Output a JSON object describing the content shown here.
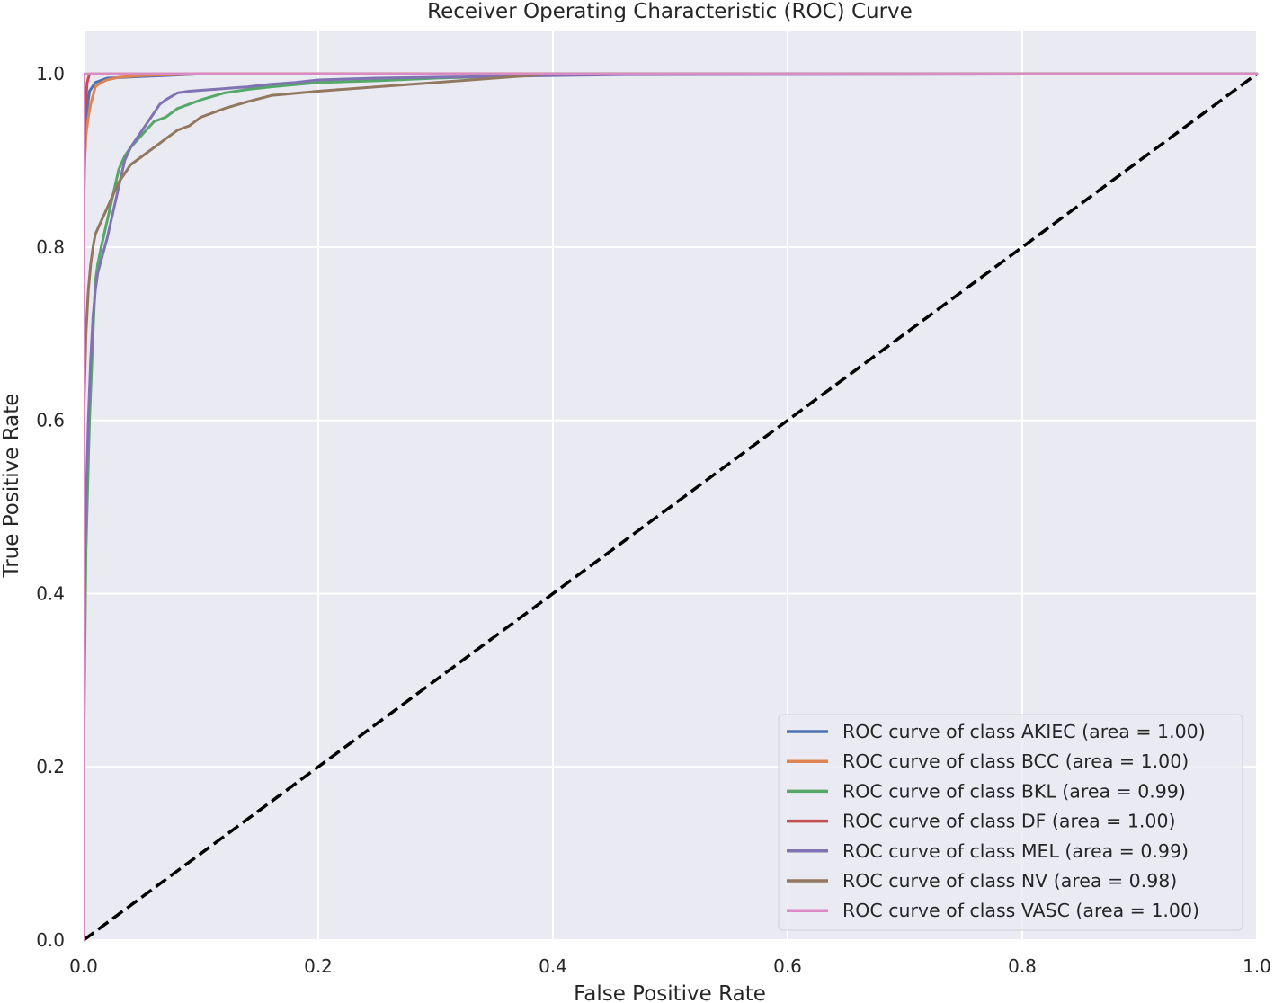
{
  "chart_data": {
    "type": "line",
    "title": "Receiver Operating Characteristic (ROC) Curve",
    "xlabel": "False Positive Rate",
    "ylabel": "True Positive Rate",
    "xlim": [
      0.0,
      1.0
    ],
    "ylim": [
      0.0,
      1.05
    ],
    "xticks": [
      "0.0",
      "0.2",
      "0.4",
      "0.6",
      "0.8",
      "1.0"
    ],
    "yticks": [
      "0.0",
      "0.2",
      "0.4",
      "0.6",
      "0.8",
      "1.0"
    ],
    "grid": true,
    "legend_position": "lower-right",
    "background": "#eaeaf2",
    "series": [
      {
        "name": "ROC curve of class AKIEC (area = 1.00)",
        "color": "#4c72b0",
        "x": [
          0,
          0,
          0.002,
          0.005,
          0.01,
          0.02,
          0.05,
          0.07,
          0.1,
          0.3,
          1.0
        ],
        "y": [
          0,
          0.9,
          0.95,
          0.98,
          0.99,
          0.995,
          0.997,
          0.998,
          1.0,
          1.0,
          1.0
        ]
      },
      {
        "name": "ROC curve of class BCC (area = 1.00)",
        "color": "#dd8452",
        "x": [
          0,
          0,
          0.001,
          0.002,
          0.004,
          0.006,
          0.008,
          0.01,
          0.015,
          0.02,
          0.03,
          0.05,
          0.1,
          1.0
        ],
        "y": [
          0,
          0.85,
          0.9,
          0.93,
          0.95,
          0.965,
          0.975,
          0.985,
          0.99,
          0.993,
          0.996,
          0.998,
          1.0,
          1.0
        ]
      },
      {
        "name": "ROC curve of class BKL (area = 0.99)",
        "color": "#55a868",
        "x": [
          0,
          0,
          0.002,
          0.005,
          0.008,
          0.01,
          0.012,
          0.015,
          0.02,
          0.025,
          0.03,
          0.035,
          0.04,
          0.05,
          0.06,
          0.07,
          0.08,
          0.09,
          0.1,
          0.12,
          0.14,
          0.16,
          0.2,
          0.25,
          0.3,
          0.35,
          0.4,
          1.0
        ],
        "y": [
          0,
          0.2,
          0.45,
          0.6,
          0.7,
          0.76,
          0.78,
          0.8,
          0.83,
          0.86,
          0.89,
          0.905,
          0.915,
          0.93,
          0.945,
          0.95,
          0.96,
          0.965,
          0.97,
          0.978,
          0.982,
          0.985,
          0.99,
          0.992,
          0.995,
          0.997,
          1.0,
          1.0
        ]
      },
      {
        "name": "ROC curve of class DF (area = 1.00)",
        "color": "#c44e52",
        "x": [
          0,
          0,
          0.001,
          0.003,
          0.005,
          1.0
        ],
        "y": [
          0,
          0.8,
          0.95,
          0.99,
          1.0,
          1.0
        ]
      },
      {
        "name": "ROC curve of class MEL (area = 0.99)",
        "color": "#8172b3",
        "x": [
          0,
          0,
          0.002,
          0.004,
          0.006,
          0.008,
          0.01,
          0.012,
          0.015,
          0.02,
          0.025,
          0.03,
          0.035,
          0.04,
          0.045,
          0.05,
          0.055,
          0.06,
          0.065,
          0.07,
          0.08,
          0.09,
          0.1,
          0.12,
          0.14,
          0.16,
          0.18,
          0.2,
          0.25,
          0.3,
          0.35,
          0.46,
          1.0
        ],
        "y": [
          0,
          0.36,
          0.5,
          0.6,
          0.67,
          0.72,
          0.75,
          0.77,
          0.785,
          0.81,
          0.84,
          0.87,
          0.9,
          0.915,
          0.925,
          0.935,
          0.945,
          0.955,
          0.965,
          0.97,
          0.978,
          0.98,
          0.981,
          0.983,
          0.985,
          0.988,
          0.99,
          0.993,
          0.995,
          0.996,
          0.997,
          0.999,
          1.0
        ]
      },
      {
        "name": "ROC curve of class NV (area = 0.98)",
        "color": "#937860",
        "x": [
          0,
          0,
          0.002,
          0.004,
          0.006,
          0.008,
          0.01,
          0.015,
          0.02,
          0.025,
          0.03,
          0.035,
          0.04,
          0.05,
          0.06,
          0.07,
          0.08,
          0.09,
          0.1,
          0.12,
          0.14,
          0.16,
          0.2,
          0.25,
          0.3,
          0.35,
          0.4,
          1.0
        ],
        "y": [
          0,
          0.6,
          0.7,
          0.75,
          0.78,
          0.8,
          0.815,
          0.83,
          0.845,
          0.86,
          0.875,
          0.885,
          0.895,
          0.905,
          0.915,
          0.925,
          0.935,
          0.94,
          0.95,
          0.96,
          0.968,
          0.975,
          0.98,
          0.985,
          0.99,
          0.995,
          1.0,
          1.0
        ]
      },
      {
        "name": "ROC curve of class VASC (area = 1.00)",
        "color": "#da8bc3",
        "x": [
          0,
          0,
          0.002,
          1.0
        ],
        "y": [
          0,
          1.0,
          1.0,
          1.0
        ]
      }
    ],
    "reference_line": {
      "x": [
        0,
        1
      ],
      "y": [
        0,
        1
      ],
      "color": "#000000",
      "style": "dashed"
    }
  }
}
